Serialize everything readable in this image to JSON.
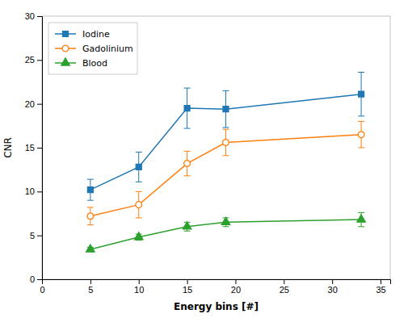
{
  "chart_data": {
    "type": "line",
    "x_label": "Energy bins [#]",
    "y_label": "CNR",
    "x": [
      5,
      10,
      15,
      19,
      33
    ],
    "series": [
      {
        "name": "Iodine",
        "marker": "square",
        "values": [
          10.2,
          12.8,
          19.5,
          19.4,
          21.1
        ],
        "errors": [
          1.2,
          1.7,
          2.3,
          2.1,
          2.5
        ]
      },
      {
        "name": "Gadolinium",
        "marker": "open-circle",
        "values": [
          7.2,
          8.5,
          13.2,
          15.6,
          16.5
        ],
        "errors": [
          1.0,
          1.5,
          1.4,
          1.5,
          1.5
        ]
      },
      {
        "name": "Blood",
        "marker": "triangle",
        "values": [
          3.4,
          4.8,
          6.0,
          6.5,
          6.8
        ],
        "errors": [
          0.25,
          0.35,
          0.5,
          0.5,
          0.8
        ]
      }
    ],
    "xlim": [
      0,
      36
    ],
    "ylim": [
      0,
      30
    ],
    "xticks": [
      0,
      5,
      10,
      15,
      20,
      25,
      30,
      35
    ],
    "yticks": [
      0,
      5,
      10,
      15,
      20,
      25,
      30
    ],
    "grid": false,
    "legend": "upper left"
  }
}
